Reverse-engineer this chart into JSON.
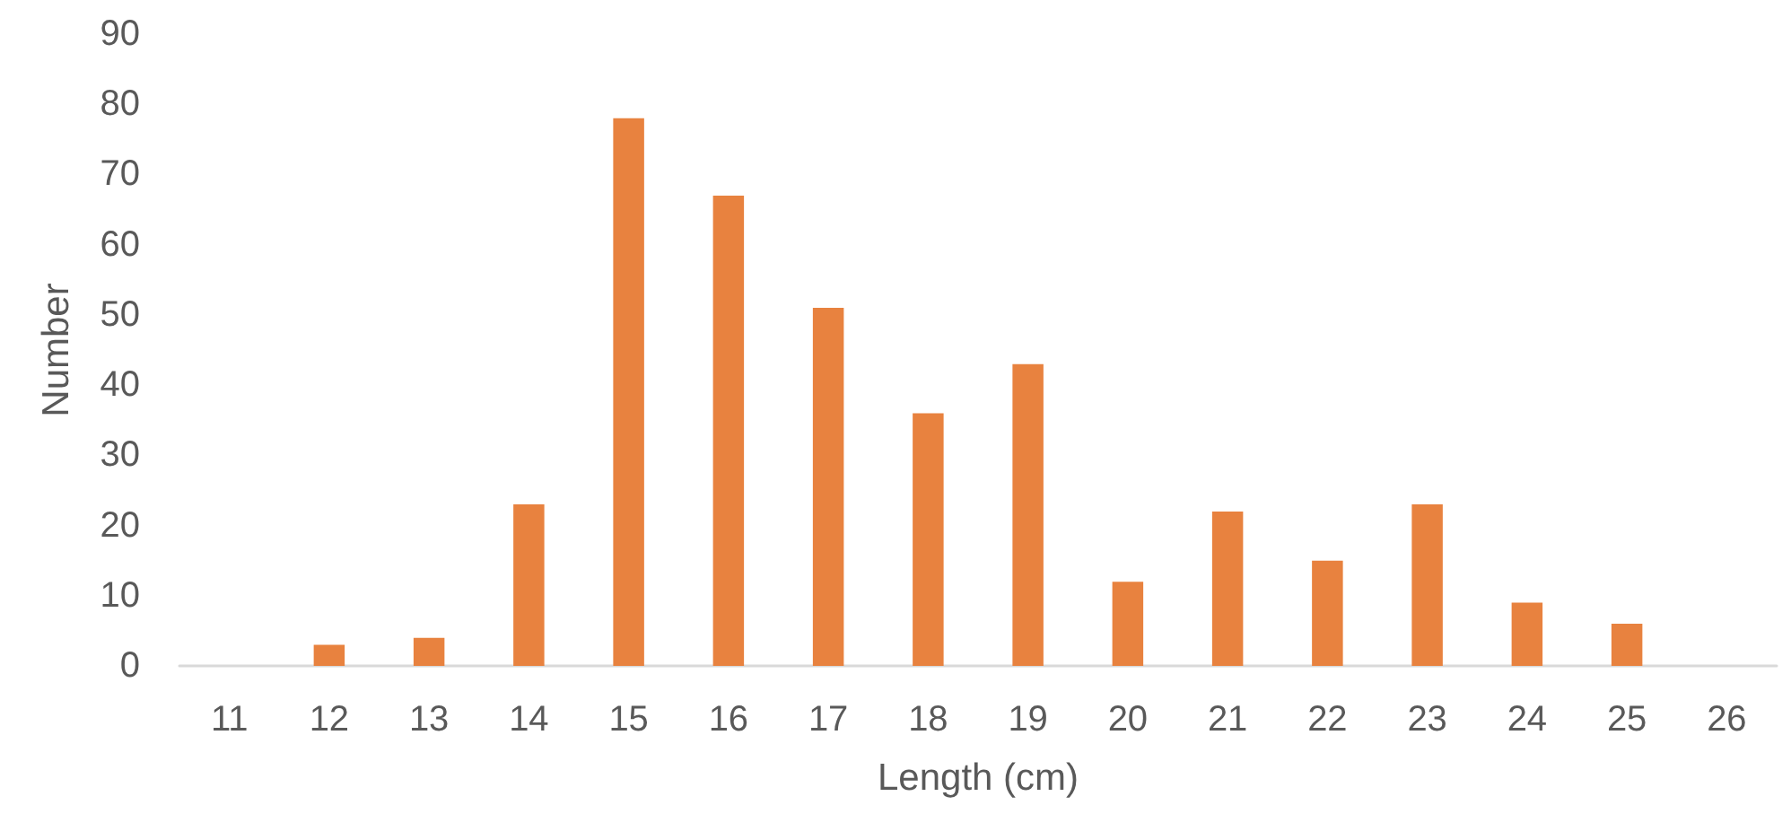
{
  "chart_data": {
    "type": "bar",
    "xlabel": "Length (cm)",
    "ylabel": "Number",
    "categories": [
      "11",
      "12",
      "13",
      "14",
      "15",
      "16",
      "17",
      "18",
      "19",
      "20",
      "21",
      "22",
      "23",
      "24",
      "25",
      "26"
    ],
    "values": [
      0,
      3,
      4,
      23,
      78,
      67,
      51,
      36,
      43,
      12,
      22,
      15,
      23,
      9,
      6,
      0
    ],
    "color": "#e8823f",
    "ylim": [
      0,
      90
    ],
    "yticks": [
      0,
      10,
      20,
      30,
      40,
      50,
      60,
      70,
      80,
      90
    ],
    "grid": false
  }
}
